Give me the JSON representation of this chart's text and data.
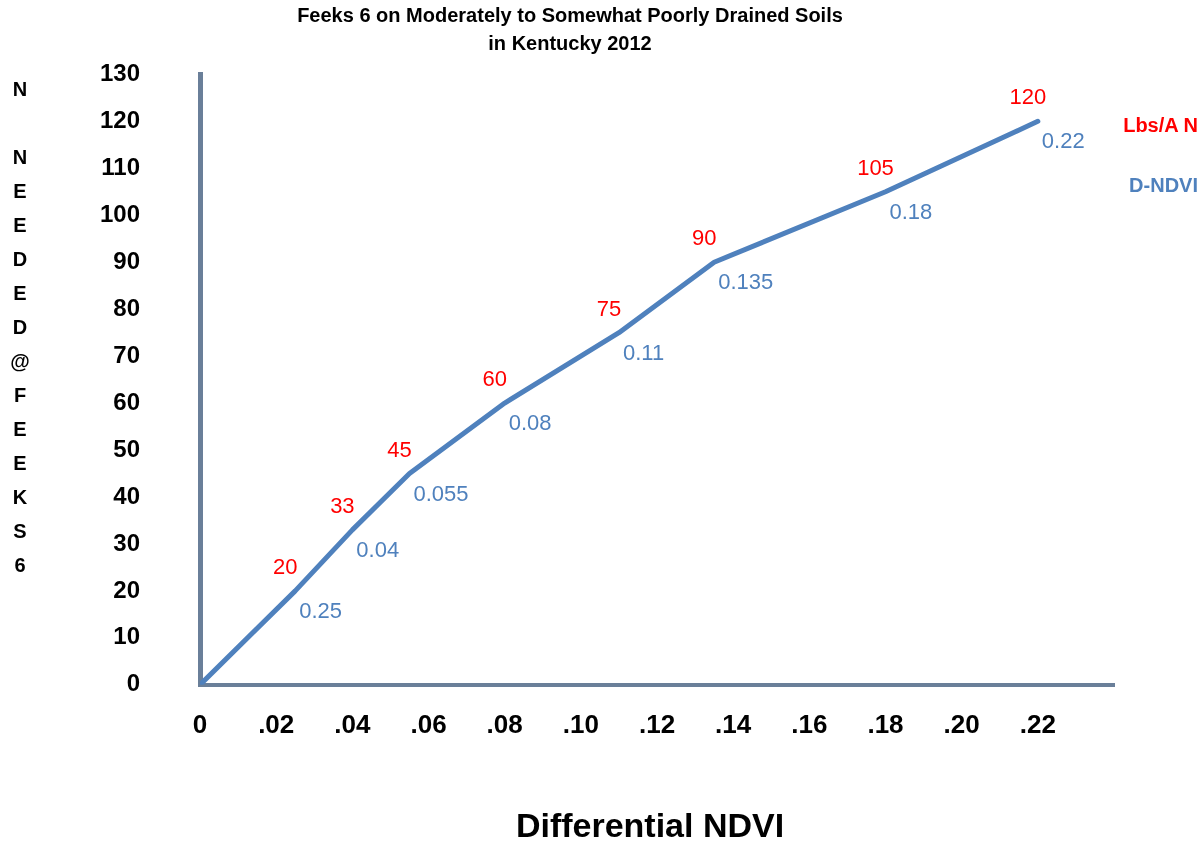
{
  "chart_data": {
    "type": "line",
    "title": "Feeks 6 on Moderately to Somewhat Poorly Drained Soils in Kentucky 2012",
    "xlabel": "Differential NDVI",
    "ylabel": "N NEEDED@FEEKS6",
    "x": [
      0,
      0.025,
      0.04,
      0.055,
      0.08,
      0.11,
      0.135,
      0.18,
      0.22
    ],
    "series": [
      {
        "color": "#4f81bd",
        "values": [
          0,
          20,
          33,
          45,
          60,
          75,
          90,
          105,
          120
        ],
        "value_labels": [
          null,
          "20",
          "33",
          "45",
          "60",
          "75",
          "90",
          "105",
          "120"
        ]
      }
    ],
    "xlim": [
      0,
      0.24
    ],
    "xticks": [
      0,
      {
        "value": 0.02,
        "label": ".02"
      },
      {
        "value": 0.04,
        "label": ".04"
      },
      {
        "value": 0.06,
        "label": ".06"
      },
      {
        "value": 0.08,
        "label": ".08"
      },
      {
        "value": 0.1,
        "label": ".10"
      },
      {
        "value": 0.12,
        "label": ".12"
      },
      {
        "value": 0.14,
        "label": ".14"
      },
      {
        "value": 0.16,
        "label": ".16"
      },
      {
        "value": 0.18,
        "label": ".18"
      },
      {
        "value": 0.2,
        "label": ".20"
      },
      {
        "value": 0.22,
        "label": ".22"
      }
    ],
    "ylim": [
      0,
      130
    ],
    "yticks": [
      0,
      10,
      20,
      30,
      40,
      50,
      60,
      70,
      80,
      90,
      100,
      110,
      120,
      130
    ],
    "annotations": [
      "Lbs/A N",
      "D-NDVI",
      {
        "text": "0.25",
        "x": 0.025,
        "y": 20
      },
      {
        "text": "0.04",
        "x": 0.04,
        "y": 33
      },
      {
        "text": "0.055",
        "x": 0.055,
        "y": 45
      },
      {
        "text": "0.08",
        "x": 0.08,
        "y": 60
      },
      {
        "text": "0.11",
        "x": 0.11,
        "y": 75
      },
      {
        "text": "0.135",
        "x": 0.135,
        "y": 90
      },
      {
        "text": "0.18",
        "x": 0.18,
        "y": 105
      },
      {
        "text": "0.22",
        "x": 0.22,
        "y": 120
      }
    ],
    "grid": false,
    "legend": false,
    "marker": "none",
    "line_style": "solid"
  }
}
